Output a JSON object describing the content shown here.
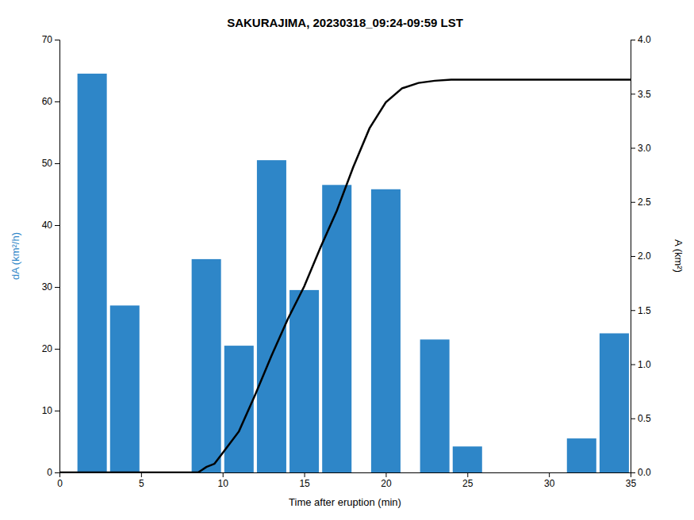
{
  "chart_data": {
    "type": "bar",
    "title": "SAKURAJIMA, 20230318_09:24-09:59 LST",
    "x_label": "Time after eruption (min)",
    "y_label": "dA (km²/h)",
    "y2_label": "A (km²)",
    "xlim": [
      0,
      35
    ],
    "xticks": [
      0,
      5,
      10,
      15,
      20,
      25,
      30,
      35
    ],
    "ylim": [
      0,
      70
    ],
    "yticks": [
      0,
      10,
      20,
      30,
      40,
      50,
      60,
      70
    ],
    "y2lim": [
      0,
      4
    ],
    "y2ticks": [
      {
        "value": 0,
        "label": "0.0"
      },
      0.5,
      {
        "value": 1.0,
        "label": "1.0"
      },
      1.5,
      {
        "value": 2.0,
        "label": "2.0"
      },
      2.5,
      {
        "value": 3.0,
        "label": "3.0"
      },
      3.5,
      {
        "value": 4.0,
        "label": "4.0"
      }
    ],
    "grid": false,
    "series": [
      {
        "type": "bar",
        "color": "#2e86c8",
        "x": [
          2,
          4,
          9,
          11,
          13,
          15,
          17,
          20,
          23,
          25,
          32,
          34
        ],
        "values": [
          64.5,
          27.0,
          34.5,
          20.5,
          50.5,
          29.5,
          46.5,
          45.8,
          21.5,
          4.2,
          5.5,
          22.5
        ]
      },
      {
        "type": "line",
        "color": "#000000",
        "axis": "y2",
        "x": [
          0,
          8.5,
          9.0,
          9.5,
          10.0,
          11.0,
          12.0,
          13.0,
          14.0,
          15.0,
          16.0,
          17.0,
          18.0,
          19.0,
          20.0,
          21.0,
          22.0,
          23.0,
          24.0,
          25.0,
          35.0
        ],
        "values": [
          0,
          0.0,
          0.05,
          0.08,
          0.18,
          0.38,
          0.72,
          1.08,
          1.42,
          1.72,
          2.08,
          2.42,
          2.82,
          3.18,
          3.42,
          3.55,
          3.6,
          3.62,
          3.63,
          3.63,
          3.63
        ]
      }
    ]
  }
}
